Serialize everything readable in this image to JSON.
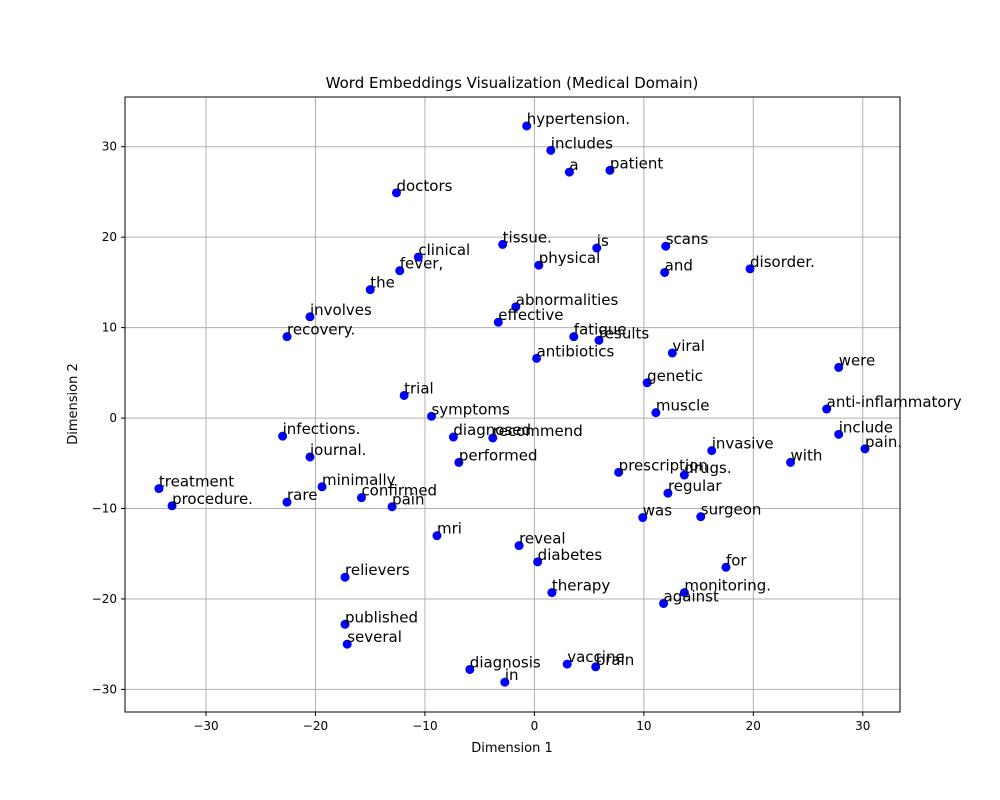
{
  "chart_data": {
    "type": "scatter",
    "title": "Word Embeddings Visualization (Medical Domain)",
    "xlabel": "Dimension 1",
    "ylabel": "Dimension 2",
    "xlim": [
      -37.4,
      33.4
    ],
    "ylim": [
      -32.5,
      35.5
    ],
    "xticks": [
      -30,
      -20,
      -10,
      0,
      10,
      20,
      30
    ],
    "yticks": [
      -30,
      -20,
      -10,
      0,
      10,
      20,
      30
    ],
    "grid": true,
    "point_color": "#0000ff",
    "points": [
      {
        "label": "hypertension.",
        "x": -0.7,
        "y": 32.3
      },
      {
        "label": "includes",
        "x": 1.5,
        "y": 29.6
      },
      {
        "label": "a",
        "x": 3.2,
        "y": 27.2
      },
      {
        "label": "patient",
        "x": 6.9,
        "y": 27.4
      },
      {
        "label": "doctors",
        "x": -12.6,
        "y": 24.9
      },
      {
        "label": "tissue.",
        "x": -2.9,
        "y": 19.2
      },
      {
        "label": "is",
        "x": 5.7,
        "y": 18.8
      },
      {
        "label": "scans",
        "x": 12.0,
        "y": 19.0
      },
      {
        "label": "clinical",
        "x": -10.6,
        "y": 17.8
      },
      {
        "label": "physical",
        "x": 0.4,
        "y": 16.9
      },
      {
        "label": "fever,",
        "x": -12.3,
        "y": 16.3
      },
      {
        "label": "and",
        "x": 11.9,
        "y": 16.1
      },
      {
        "label": "disorder.",
        "x": 19.7,
        "y": 16.5
      },
      {
        "label": "the",
        "x": -15.0,
        "y": 14.2
      },
      {
        "label": "abnormalities",
        "x": -1.7,
        "y": 12.3
      },
      {
        "label": "involves",
        "x": -20.5,
        "y": 11.2
      },
      {
        "label": "effective",
        "x": -3.3,
        "y": 10.6
      },
      {
        "label": "recovery.",
        "x": -22.6,
        "y": 9.0
      },
      {
        "label": "fatigue",
        "x": 3.6,
        "y": 9.0
      },
      {
        "label": "results",
        "x": 5.9,
        "y": 8.6
      },
      {
        "label": "viral",
        "x": 12.6,
        "y": 7.2
      },
      {
        "label": "antibiotics",
        "x": 0.2,
        "y": 6.6
      },
      {
        "label": "were",
        "x": 27.8,
        "y": 5.6
      },
      {
        "label": "genetic",
        "x": 10.3,
        "y": 3.9
      },
      {
        "label": "trial",
        "x": -11.9,
        "y": 2.5
      },
      {
        "label": "anti-inflammatory",
        "x": 26.7,
        "y": 1.0
      },
      {
        "label": "muscle",
        "x": 11.1,
        "y": 0.6
      },
      {
        "label": "symptoms",
        "x": -9.4,
        "y": 0.2
      },
      {
        "label": "infections.",
        "x": -23.0,
        "y": -2.0
      },
      {
        "label": "diagnosed",
        "x": -7.4,
        "y": -2.1
      },
      {
        "label": "recommend",
        "x": -3.8,
        "y": -2.2
      },
      {
        "label": "include",
        "x": 27.8,
        "y": -1.8
      },
      {
        "label": "pain.",
        "x": 30.2,
        "y": -3.4
      },
      {
        "label": "invasive",
        "x": 16.2,
        "y": -3.6
      },
      {
        "label": "journal.",
        "x": -20.5,
        "y": -4.3
      },
      {
        "label": "performed",
        "x": -6.9,
        "y": -4.9
      },
      {
        "label": "with",
        "x": 23.4,
        "y": -4.9
      },
      {
        "label": "prescription",
        "x": 7.7,
        "y": -6.0
      },
      {
        "label": "drugs.",
        "x": 13.7,
        "y": -6.3
      },
      {
        "label": "treatment",
        "x": -34.3,
        "y": -7.8
      },
      {
        "label": "minimally",
        "x": -19.4,
        "y": -7.6
      },
      {
        "label": "regular",
        "x": 12.2,
        "y": -8.3
      },
      {
        "label": "confirmed",
        "x": -15.8,
        "y": -8.8
      },
      {
        "label": "rare",
        "x": -22.6,
        "y": -9.3
      },
      {
        "label": "procedure.",
        "x": -33.1,
        "y": -9.7
      },
      {
        "label": "pain",
        "x": -13.0,
        "y": -9.8
      },
      {
        "label": "was",
        "x": 9.9,
        "y": -11.0
      },
      {
        "label": "surgeon",
        "x": 15.2,
        "y": -10.9
      },
      {
        "label": "mri",
        "x": -8.9,
        "y": -13.0
      },
      {
        "label": "reveal",
        "x": -1.4,
        "y": -14.1
      },
      {
        "label": "diabetes",
        "x": 0.3,
        "y": -15.9
      },
      {
        "label": "for",
        "x": 17.5,
        "y": -16.5
      },
      {
        "label": "relievers",
        "x": -17.3,
        "y": -17.6
      },
      {
        "label": "therapy",
        "x": 1.6,
        "y": -19.3
      },
      {
        "label": "monitoring.",
        "x": 13.7,
        "y": -19.3
      },
      {
        "label": "against",
        "x": 11.8,
        "y": -20.5
      },
      {
        "label": "published",
        "x": -17.3,
        "y": -22.8
      },
      {
        "label": "several",
        "x": -17.1,
        "y": -25.0
      },
      {
        "label": "vaccine",
        "x": 3.0,
        "y": -27.2
      },
      {
        "label": "brain",
        "x": 5.6,
        "y": -27.5
      },
      {
        "label": "diagnosis",
        "x": -5.9,
        "y": -27.8
      },
      {
        "label": "in",
        "x": -2.7,
        "y": -29.2
      }
    ]
  }
}
